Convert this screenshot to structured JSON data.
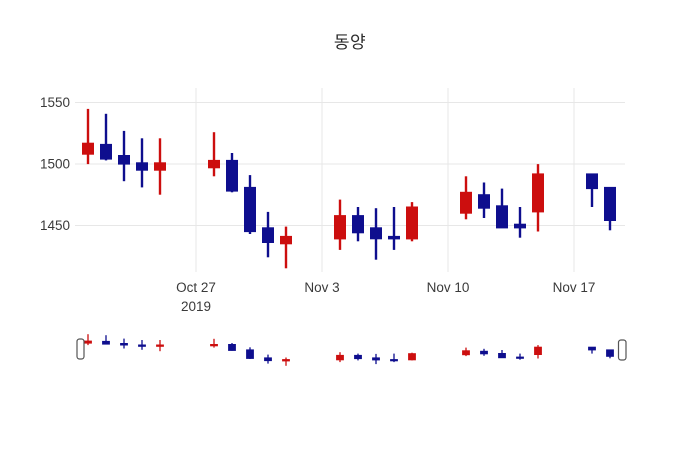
{
  "title": "동양",
  "chart_data": {
    "type": "candlestick",
    "title": "동양",
    "x": [
      "2019-10-21",
      "2019-10-22",
      "2019-10-23",
      "2019-10-24",
      "2019-10-25",
      "2019-10-28",
      "2019-10-29",
      "2019-10-30",
      "2019-10-31",
      "2019-11-01",
      "2019-11-04",
      "2019-11-05",
      "2019-11-06",
      "2019-11-07",
      "2019-11-08",
      "2019-11-11",
      "2019-11-12",
      "2019-11-13",
      "2019-11-14",
      "2019-11-15",
      "2019-11-18",
      "2019-11-19"
    ],
    "open": [
      1508,
      1516,
      1507,
      1501,
      1495,
      1497,
      1503,
      1481,
      1448,
      1435,
      1439,
      1458,
      1448,
      1441,
      1439,
      1460,
      1475,
      1466,
      1451,
      1461,
      1492,
      1481
    ],
    "high": [
      1545,
      1541,
      1527,
      1521,
      1521,
      1526,
      1509,
      1491,
      1461,
      1449,
      1471,
      1465,
      1464,
      1465,
      1469,
      1490,
      1485,
      1480,
      1465,
      1500,
      1492,
      1481
    ],
    "low": [
      1500,
      1503,
      1486,
      1481,
      1475,
      1490,
      1477,
      1443,
      1424,
      1415,
      1430,
      1437,
      1422,
      1430,
      1437,
      1455,
      1456,
      1448,
      1440,
      1445,
      1465,
      1446
    ],
    "close": [
      1517,
      1504,
      1500,
      1495,
      1501,
      1503,
      1478,
      1445,
      1436,
      1441,
      1458,
      1444,
      1439,
      1439,
      1465,
      1477,
      1464,
      1448,
      1448,
      1492,
      1480,
      1454
    ],
    "increasing_color": "#cc0e0e",
    "decreasing_color": "#0e0e8e",
    "grid_color": "#e7e7e7",
    "grid": true,
    "legend_position": "none",
    "ylim": [
      1412,
      1562
    ],
    "yticks": [
      1550,
      1500,
      1450
    ],
    "xticks": [
      {
        "date": "2019-10-27",
        "label": "Oct 27",
        "label2": "2019"
      },
      {
        "date": "2019-11-03",
        "label": "Nov 3"
      },
      {
        "date": "2019-11-10",
        "label": "Nov 10"
      },
      {
        "date": "2019-11-17",
        "label": "Nov 17"
      }
    ],
    "rangeslider": {
      "visible": true,
      "ylim": [
        1410,
        1550
      ]
    }
  }
}
